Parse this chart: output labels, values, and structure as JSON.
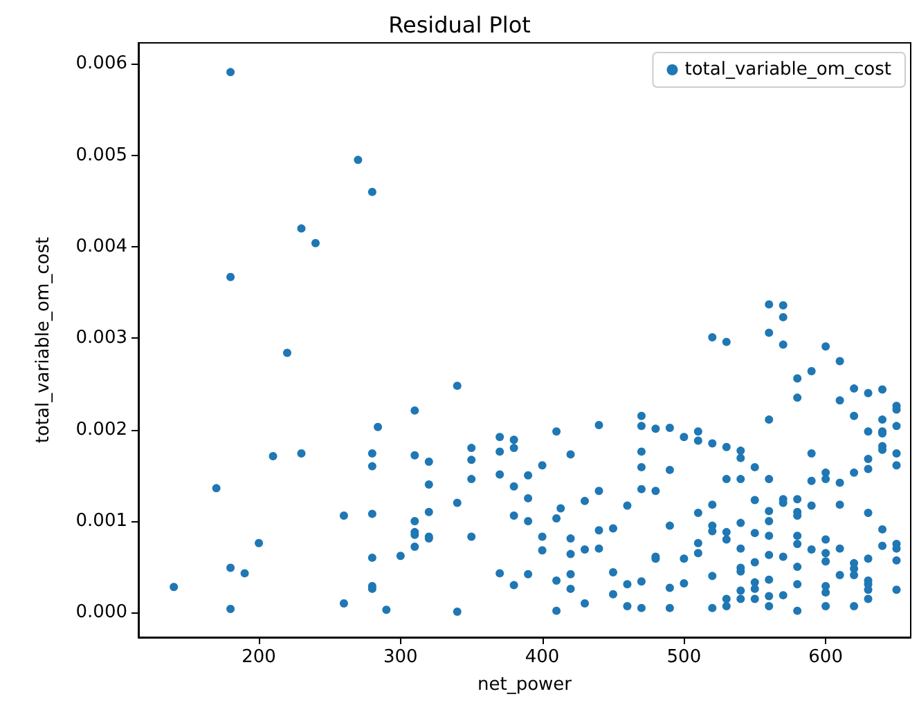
{
  "chart_data": {
    "type": "scatter",
    "title": "Residual Plot",
    "xlabel": "net_power",
    "ylabel": "total_variable_om_cost",
    "xlim": [
      115,
      660
    ],
    "ylim": [
      -0.00027,
      0.00623
    ],
    "xticks": [
      200,
      300,
      400,
      500,
      600
    ],
    "yticks": [
      {
        "value": 0,
        "label": "0.000"
      },
      {
        "value": 0.001,
        "label": "0.001"
      },
      {
        "value": 0.002,
        "label": "0.002"
      },
      {
        "value": 0.003,
        "label": "0.003"
      },
      {
        "value": 0.004,
        "label": "0.004"
      },
      {
        "value": 0.005,
        "label": "0.005"
      },
      {
        "value": 0.006,
        "label": "0.006"
      }
    ],
    "legend": "top right",
    "marker": "circle",
    "series": [
      {
        "name": "total_variable_om_cost",
        "color": "#1f77b4",
        "x": [
          180,
          270,
          280,
          230,
          240,
          180,
          220,
          340,
          310,
          284,
          210,
          230,
          280,
          280,
          310,
          320,
          320,
          370,
          380,
          380,
          370,
          350,
          350,
          350,
          370,
          380,
          170,
          340,
          260,
          280,
          320,
          380,
          310,
          310,
          310,
          320,
          320,
          310,
          350,
          200,
          280,
          300,
          180,
          190,
          140,
          280,
          280,
          370,
          380,
          180,
          260,
          290,
          340,
          390,
          390,
          390,
          390,
          400,
          400,
          400,
          410,
          410,
          413,
          410,
          410,
          420,
          420,
          420,
          420,
          420,
          430,
          430,
          430,
          440,
          440,
          440,
          440,
          450,
          450,
          450,
          460,
          460,
          460,
          470,
          470,
          470,
          470,
          470,
          470,
          470,
          480,
          480,
          480,
          480,
          490,
          490,
          490,
          490,
          490,
          500,
          500,
          500,
          510,
          510,
          510,
          510,
          510,
          520,
          520,
          520,
          520,
          520,
          520,
          530,
          530,
          530,
          530,
          530,
          530,
          540,
          540,
          540,
          540,
          540,
          540,
          540,
          540,
          540,
          550,
          550,
          550,
          550,
          550,
          550,
          550,
          560,
          560,
          560,
          560,
          560,
          560,
          560,
          560,
          560,
          570,
          570,
          570,
          570,
          580,
          580,
          580,
          580,
          580,
          580,
          580,
          580,
          580,
          580,
          590,
          590,
          590,
          590,
          590,
          600,
          600,
          600,
          600,
          600,
          600,
          600,
          600,
          600,
          610,
          610,
          610,
          610,
          610,
          610,
          620,
          620,
          620,
          620,
          620,
          620,
          620,
          630,
          630,
          630,
          630,
          630,
          630,
          630,
          630,
          630,
          630,
          640,
          640,
          640,
          640,
          640,
          640,
          640,
          640,
          650,
          650,
          650,
          650,
          650,
          650,
          650,
          650,
          650,
          520,
          530,
          560,
          570,
          570,
          560,
          570
        ],
        "values": [
          0.00591,
          0.00495,
          0.0046,
          0.0042,
          0.00404,
          0.00367,
          0.00284,
          0.00248,
          0.00221,
          0.00203,
          0.00171,
          0.00174,
          0.00174,
          0.0016,
          0.00172,
          0.00165,
          0.0014,
          0.00192,
          0.00189,
          0.0018,
          0.00176,
          0.0018,
          0.00167,
          0.00146,
          0.00151,
          0.00138,
          0.00136,
          0.0012,
          0.00106,
          0.00108,
          0.0011,
          0.00106,
          0.001,
          0.00088,
          0.00085,
          0.00083,
          0.00081,
          0.00072,
          0.00083,
          0.00076,
          0.0006,
          0.00062,
          0.00049,
          0.00043,
          0.00028,
          0.00029,
          0.00026,
          0.00043,
          0.0003,
          4e-05,
          0.0001,
          3e-05,
          1e-05,
          0.0015,
          0.00125,
          0.001,
          0.00042,
          0.00161,
          0.00083,
          0.00068,
          0.00198,
          0.00103,
          0.00114,
          0.00035,
          2e-05,
          0.00173,
          0.00081,
          0.00064,
          0.00042,
          0.00026,
          0.00122,
          0.00069,
          0.0001,
          0.00205,
          0.00133,
          0.0009,
          0.0007,
          0.00092,
          0.00044,
          0.0002,
          0.00117,
          0.00031,
          7e-05,
          0.00215,
          0.00204,
          0.00176,
          0.00159,
          0.00135,
          0.00034,
          5e-05,
          0.00201,
          0.00133,
          0.00061,
          0.00059,
          0.00202,
          0.00156,
          0.00095,
          0.00027,
          5e-05,
          0.00192,
          0.00059,
          0.00032,
          0.00198,
          0.00188,
          0.00109,
          0.00076,
          0.00065,
          0.00185,
          0.00118,
          0.00095,
          0.00089,
          0.0004,
          5e-05,
          0.00181,
          0.00146,
          0.00088,
          0.0008,
          0.00015,
          7e-05,
          0.00177,
          0.00169,
          0.00146,
          0.00098,
          0.0007,
          0.00049,
          0.00045,
          0.00024,
          0.00015,
          0.00159,
          0.00123,
          0.00087,
          0.00055,
          0.00033,
          0.00026,
          0.00015,
          0.00211,
          0.00146,
          0.00111,
          0.001,
          0.00084,
          0.00063,
          0.00036,
          0.00018,
          7e-05,
          0.00124,
          0.0012,
          0.00061,
          0.00019,
          0.00256,
          0.00235,
          0.00124,
          0.0011,
          0.00106,
          0.00084,
          0.00075,
          0.0005,
          0.00031,
          2e-05,
          0.00264,
          0.00174,
          0.00144,
          0.00117,
          0.00069,
          0.00291,
          0.00153,
          0.00146,
          0.0008,
          0.00065,
          0.00056,
          0.00029,
          0.00022,
          7e-05,
          0.00275,
          0.00232,
          0.00142,
          0.00118,
          0.0007,
          0.00041,
          0.00245,
          0.00215,
          0.00153,
          0.00054,
          0.00048,
          0.00041,
          7e-05,
          0.0024,
          0.00198,
          0.00168,
          0.00157,
          0.00109,
          0.00059,
          0.00035,
          0.00031,
          0.00025,
          0.00015,
          0.00244,
          0.00211,
          0.00198,
          0.00196,
          0.00182,
          0.00178,
          0.00091,
          0.00073,
          0.00226,
          0.00222,
          0.00204,
          0.00174,
          0.00161,
          0.00075,
          0.0007,
          0.00057,
          0.00025,
          0.00301,
          0.00296,
          0.00337,
          0.00336,
          0.00323,
          0.00306,
          0.00293
        ]
      }
    ]
  }
}
